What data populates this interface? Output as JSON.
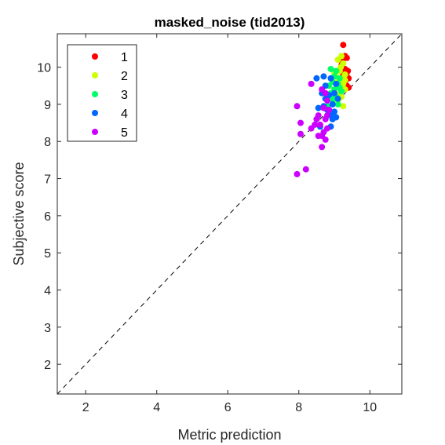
{
  "chart_data": {
    "type": "scatter",
    "title": "masked_noise (tid2013)",
    "xlabel": "Metric prediction",
    "ylabel": "Subjective score",
    "xlim": [
      1.2,
      10.9
    ],
    "ylim": [
      1.2,
      10.9
    ],
    "xticks": [
      2,
      4,
      6,
      8,
      10
    ],
    "yticks": [
      2,
      3,
      4,
      5,
      6,
      7,
      8,
      9,
      10
    ],
    "diagonal": true,
    "legend_position": "top-left",
    "series": [
      {
        "name": "1",
        "color": "#ff0000",
        "points": [
          [
            9.25,
            10.6
          ],
          [
            9.3,
            10.3
          ],
          [
            9.35,
            10.25
          ],
          [
            9.2,
            10.05
          ],
          [
            9.3,
            9.95
          ],
          [
            9.35,
            9.85
          ],
          [
            9.25,
            9.8
          ],
          [
            9.4,
            9.7
          ],
          [
            9.3,
            9.6
          ],
          [
            9.35,
            9.5
          ],
          [
            9.4,
            9.45
          ],
          [
            9.28,
            9.75
          ],
          [
            9.38,
            9.9
          ],
          [
            9.22,
            10.15
          ]
        ]
      },
      {
        "name": "2",
        "color": "#ccff00",
        "points": [
          [
            9.1,
            10.2
          ],
          [
            9.2,
            10.3
          ],
          [
            9.25,
            10.1
          ],
          [
            9.15,
            9.9
          ],
          [
            9.3,
            9.8
          ],
          [
            9.2,
            9.7
          ],
          [
            9.1,
            9.6
          ],
          [
            9.25,
            9.55
          ],
          [
            9.3,
            9.4
          ],
          [
            9.15,
            9.3
          ],
          [
            9.2,
            9.2
          ],
          [
            9.1,
            9.1
          ],
          [
            9.25,
            8.95
          ],
          [
            9.05,
            9.75
          ],
          [
            9.0,
            9.85
          ],
          [
            9.3,
            9.65
          ],
          [
            9.18,
            10.0
          ]
        ]
      },
      {
        "name": "3",
        "color": "#00ff66",
        "points": [
          [
            8.9,
            9.95
          ],
          [
            9.05,
            9.9
          ],
          [
            9.15,
            9.7
          ],
          [
            8.95,
            9.6
          ],
          [
            9.1,
            9.55
          ],
          [
            8.85,
            9.5
          ],
          [
            9.0,
            9.4
          ],
          [
            9.2,
            9.35
          ],
          [
            8.9,
            9.3
          ],
          [
            9.05,
            9.2
          ],
          [
            8.95,
            9.1
          ],
          [
            9.1,
            9.0
          ],
          [
            8.8,
            8.95
          ],
          [
            9.15,
            9.45
          ],
          [
            9.0,
            9.75
          ],
          [
            8.9,
            9.2
          ]
        ]
      },
      {
        "name": "4",
        "color": "#0066ff",
        "points": [
          [
            8.5,
            9.7
          ],
          [
            8.7,
            9.75
          ],
          [
            8.9,
            9.7
          ],
          [
            8.75,
            9.5
          ],
          [
            9.05,
            9.55
          ],
          [
            8.65,
            9.3
          ],
          [
            8.85,
            9.25
          ],
          [
            9.0,
            9.3
          ],
          [
            8.75,
            9.15
          ],
          [
            8.95,
            9.0
          ],
          [
            8.55,
            8.9
          ],
          [
            8.8,
            8.85
          ],
          [
            9.0,
            8.8
          ],
          [
            8.9,
            8.7
          ],
          [
            9.05,
            8.65
          ],
          [
            8.95,
            8.6
          ],
          [
            8.6,
            8.4
          ],
          [
            8.9,
            8.4
          ],
          [
            9.1,
            9.15
          ],
          [
            8.7,
            8.95
          ]
        ]
      },
      {
        "name": "5",
        "color": "#cc00ff",
        "points": [
          [
            8.35,
            9.55
          ],
          [
            8.65,
            9.4
          ],
          [
            8.75,
            9.3
          ],
          [
            8.8,
            9.1
          ],
          [
            7.95,
            8.95
          ],
          [
            8.7,
            8.9
          ],
          [
            8.85,
            8.85
          ],
          [
            8.8,
            8.7
          ],
          [
            8.55,
            8.7
          ],
          [
            8.5,
            8.6
          ],
          [
            8.75,
            8.6
          ],
          [
            8.05,
            8.5
          ],
          [
            8.45,
            8.45
          ],
          [
            8.6,
            8.45
          ],
          [
            8.35,
            8.35
          ],
          [
            8.8,
            8.35
          ],
          [
            8.05,
            8.2
          ],
          [
            8.55,
            8.15
          ],
          [
            8.65,
            8.15
          ],
          [
            8.75,
            8.05
          ],
          [
            8.65,
            7.85
          ],
          [
            8.2,
            7.25
          ],
          [
            7.95,
            7.12
          ],
          [
            8.7,
            8.25
          ]
        ]
      }
    ]
  }
}
